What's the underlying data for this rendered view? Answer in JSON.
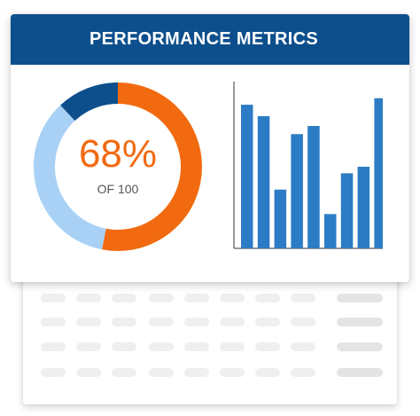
{
  "card": {
    "title": "PERFORMANCE METRICS",
    "header_color": "#0d4f8c"
  },
  "donut": {
    "value_label": "68%",
    "sub_label": "OF 100",
    "percent": 68,
    "segments": [
      {
        "fraction": 0.53,
        "color": "#f26a10"
      },
      {
        "fraction": 0.35,
        "color": "#a8d1f5"
      },
      {
        "fraction": 0.12,
        "color": "#0d4f8c"
      }
    ]
  },
  "chart_data": {
    "type": "bar",
    "values": [
      88,
      81,
      36,
      70,
      75,
      21,
      46,
      50,
      92
    ],
    "ylim": [
      0,
      100
    ],
    "bar_color": "#2b7cc4",
    "axis_color": "#333333"
  },
  "placeholder_rows": 4
}
